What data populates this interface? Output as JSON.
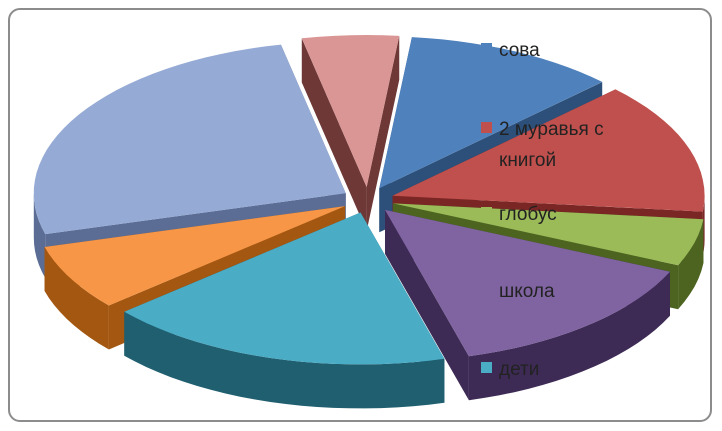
{
  "chart_data": {
    "type": "pie",
    "style": "3d-exploded",
    "title": "",
    "slices": [
      {
        "label": "сова",
        "value": 11,
        "color": "#4f81bd",
        "side": "#2c5079",
        "in_legend": true
      },
      {
        "label": "2 муравья с книгой",
        "value": 14,
        "color": "#c0504d",
        "side": "#7a2624",
        "in_legend": true
      },
      {
        "label": "глобус",
        "value": 5,
        "color": "#9bbb59",
        "side": "#4d6420",
        "in_legend": true
      },
      {
        "label": "школа",
        "value": 14,
        "color": "#8064a2",
        "side": "#3d2b55",
        "in_legend": true
      },
      {
        "label": "дети",
        "value": 18,
        "color": "#4bacc6",
        "side": "#1f5f70",
        "in_legend": true
      },
      {
        "label": "",
        "value": 7,
        "color": "#f79646",
        "side": "#a35711",
        "in_legend": false
      },
      {
        "label": "",
        "value": 26,
        "color": "#95aad4",
        "side": "#5b6d94",
        "in_legend": false
      },
      {
        "label": "",
        "value": 5,
        "color": "#d99694",
        "side": "#6e3836",
        "in_legend": false
      }
    ],
    "legend_position": "right, overlapping chart"
  }
}
